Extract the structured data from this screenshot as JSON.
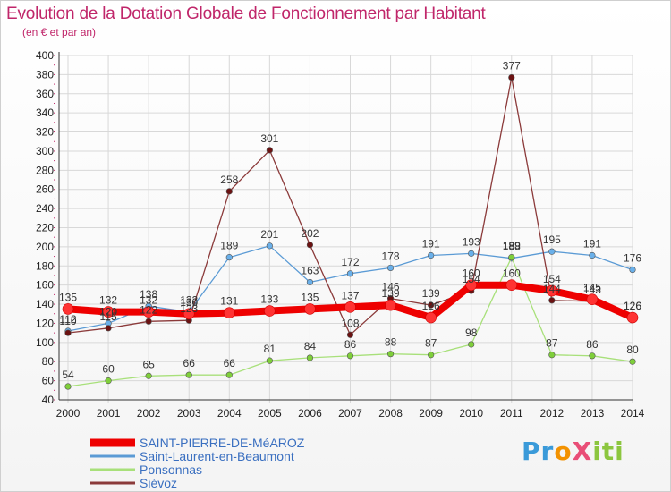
{
  "title": "Evolution de la Dotation Globale de Fonctionnement par Habitant",
  "subtitle": "(en € et par an)",
  "logo": "ProXiti",
  "colors": {
    "title": "#c0266a",
    "grid": "#d8d8d8",
    "axis": "#333333"
  },
  "chart_data": {
    "type": "line",
    "title": "Evolution de la Dotation Globale de Fonctionnement par Habitant",
    "subtitle": "(en € et par an)",
    "xlabel": "",
    "ylabel": "",
    "ylim": [
      40,
      400
    ],
    "ystep": 20,
    "grid": true,
    "legend": "bottom-left",
    "x": [
      "2000",
      "2001",
      "2002",
      "2003",
      "2004",
      "2005",
      "2006",
      "2007",
      "2008",
      "2009",
      "2010",
      "2011",
      "2012",
      "2013",
      "2014"
    ],
    "series": [
      {
        "name": "SAINT-PIERRE-DE-MéAROZ",
        "color": "#ff0000",
        "line": "#ee0000",
        "marker": "#ff3333",
        "bold": true,
        "values": [
          135,
          132,
          132,
          130,
          131,
          133,
          135,
          137,
          139,
          126,
          160,
          160,
          154,
          145,
          126
        ]
      },
      {
        "name": "Saint-Laurent-en-Beaumont",
        "color": "#5b9bd5",
        "line": "#5b9bd5",
        "marker": "#6ab0ea",
        "bold": false,
        "values": [
          112,
          120,
          138,
          132,
          189,
          201,
          163,
          172,
          178,
          191,
          193,
          188,
          195,
          191,
          176
        ]
      },
      {
        "name": "Ponsonnas",
        "color": "#a8e07a",
        "line": "#a8e07a",
        "marker": "#7fcf3a",
        "bold": false,
        "values": [
          54,
          60,
          65,
          66,
          66,
          81,
          84,
          86,
          88,
          87,
          98,
          189,
          87,
          86,
          80
        ]
      },
      {
        "name": "Siévoz",
        "color": "#8b3a3a",
        "line": "#8b3a3a",
        "marker": "#6b1212",
        "bold": false,
        "values": [
          110,
          115,
          122,
          123,
          258,
          301,
          202,
          108,
          146,
          139,
          154,
          377,
          144,
          143,
          126
        ]
      }
    ]
  }
}
